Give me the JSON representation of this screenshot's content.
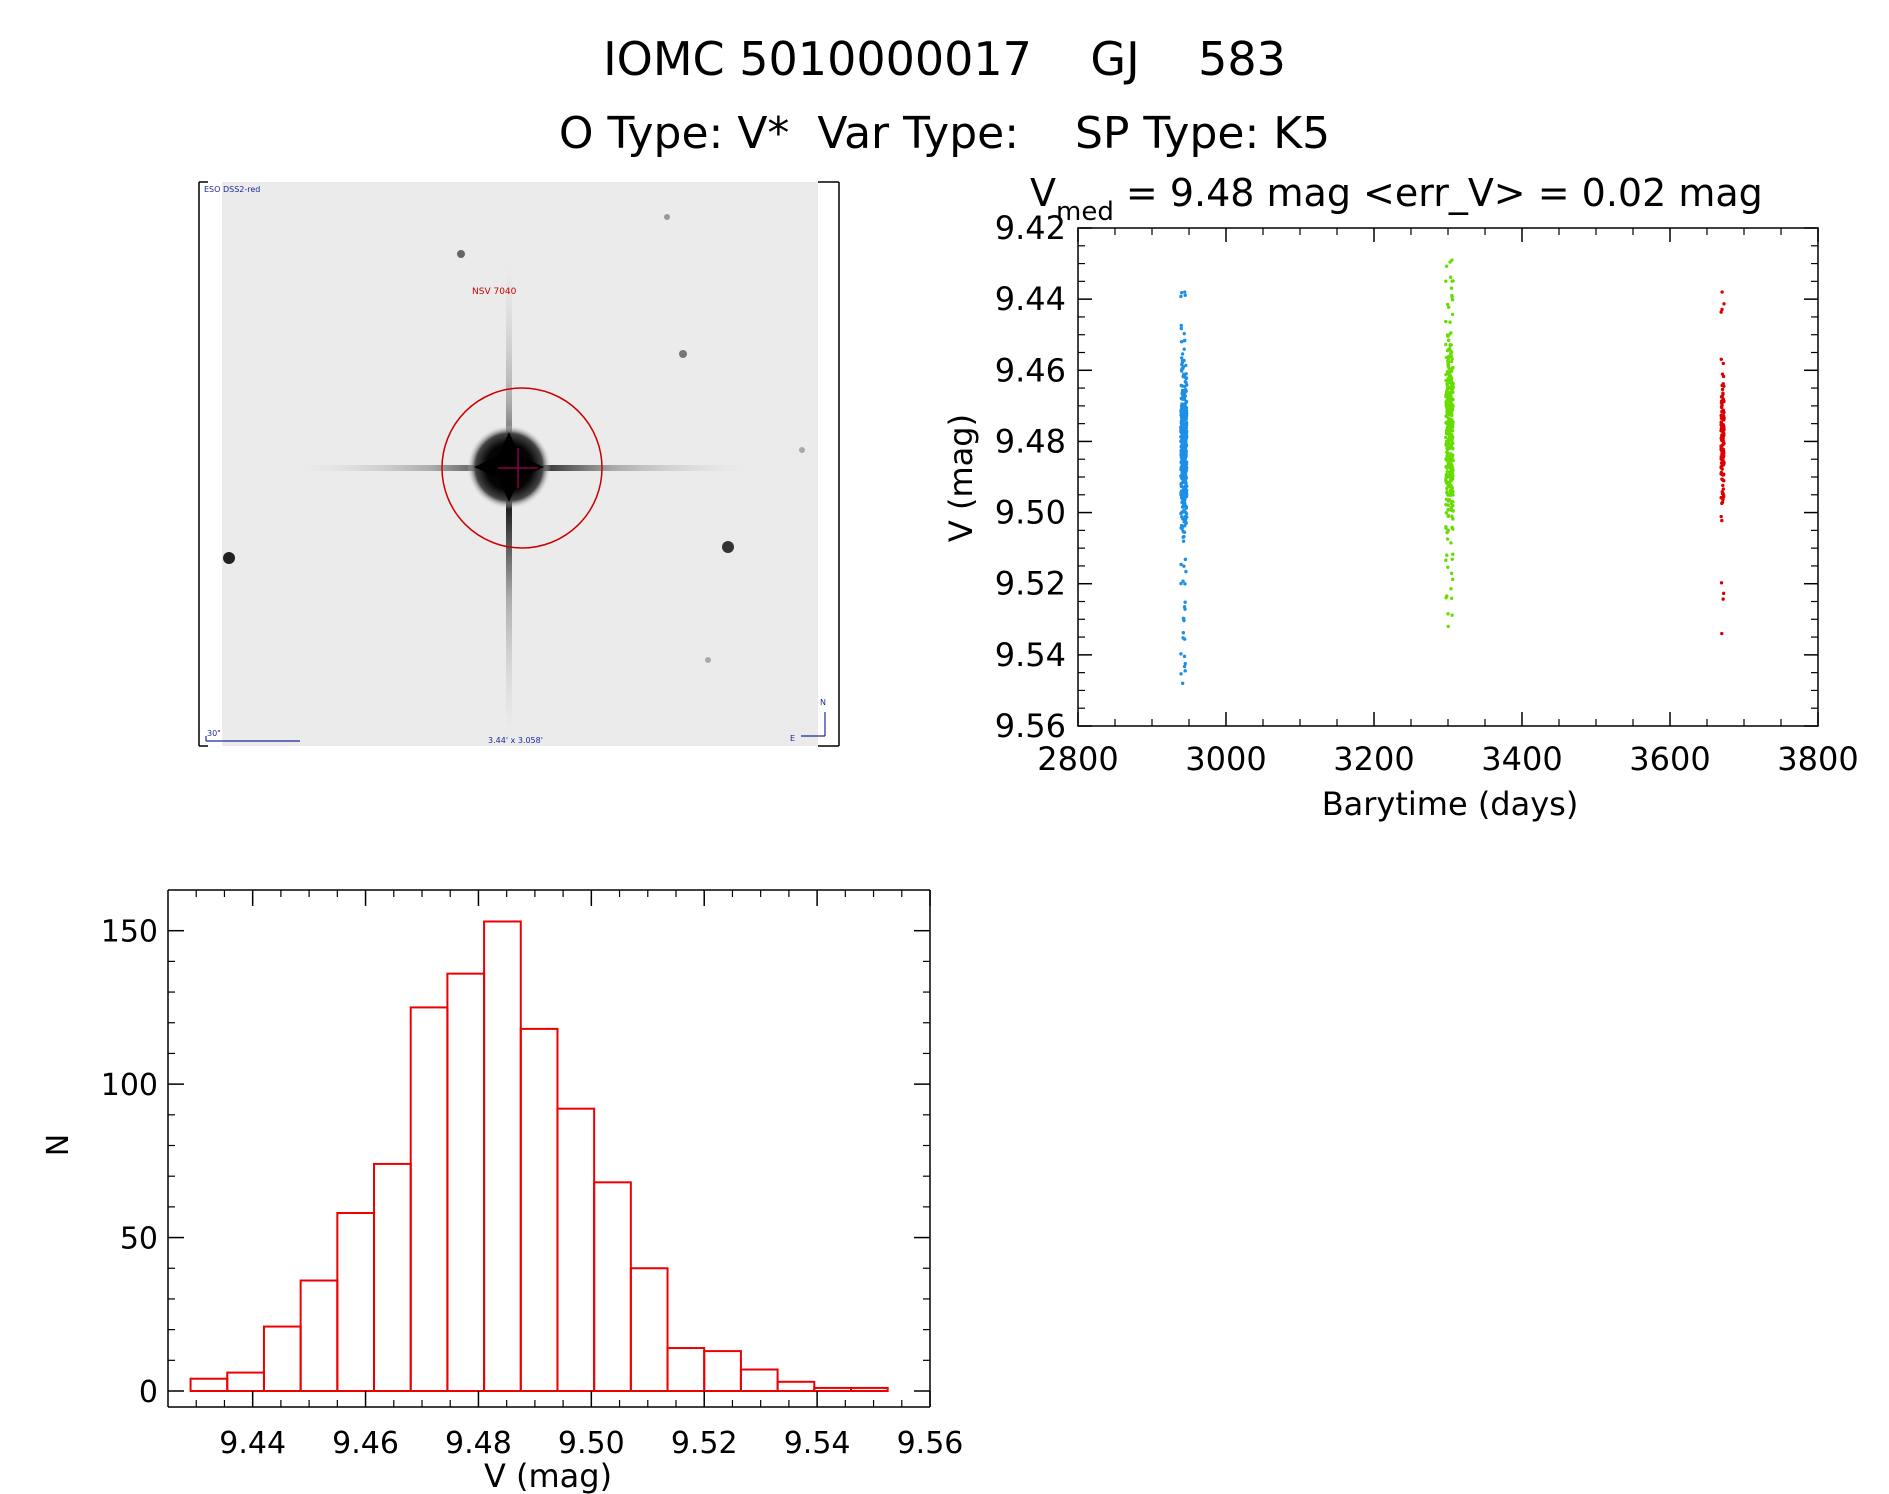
{
  "header": {
    "title_line1": "IOMC 5010000017    GJ    583",
    "title_line2": "O Type: V*  Var Type:    SP Type: K5"
  },
  "finder_chart": {
    "survey_label": "ESO DSS2-red",
    "object_label": "NSV 7040",
    "scale_label": "30\"",
    "fov_label": "3.44' x 3.058'",
    "north_label": "N",
    "east_label": "E",
    "circle_color": "#cc0000"
  },
  "chart_data": [
    {
      "type": "scatter",
      "title_prefix": "V",
      "title_subscript": "med",
      "title_rest": " = 9.48 mag <err_V> = 0.02 mag",
      "xlabel": "Barytime (days)",
      "ylabel": "V (mag)",
      "xlim": [
        2800,
        3800
      ],
      "ylim": [
        9.56,
        9.42
      ],
      "y_inverted": true,
      "xticks": [
        2800,
        3000,
        3200,
        3400,
        3600,
        3800
      ],
      "yticks": [
        "9.42",
        "9.44",
        "9.46",
        "9.48",
        "9.50",
        "9.52",
        "9.54",
        "9.56"
      ],
      "series": [
        {
          "color": "#1e8fe6",
          "x_center": 2943,
          "x_spread": 4,
          "y_dense_range": [
            9.457,
            9.508
          ],
          "y_full_range": [
            9.438,
            9.548
          ],
          "n_points": 420
        },
        {
          "color": "#66dd00",
          "x_center": 3302,
          "x_spread": 5,
          "y_dense_range": [
            9.447,
            9.508
          ],
          "y_full_range": [
            9.429,
            9.532
          ],
          "n_points": 420
        },
        {
          "color": "#dd0000",
          "x_center": 3671,
          "x_spread": 2,
          "y_dense_range": [
            9.458,
            9.5
          ],
          "y_full_range": [
            9.438,
            9.534
          ],
          "n_points": 150
        }
      ]
    },
    {
      "type": "bar",
      "subtype": "histogram",
      "xlabel": "V (mag)",
      "ylabel": "N",
      "xlim": [
        9.425,
        9.56
      ],
      "ylim": [
        0,
        160
      ],
      "xticks": [
        "9.44",
        "9.46",
        "9.48",
        "9.50",
        "9.52",
        "9.54",
        "9.56"
      ],
      "yticks": [
        0,
        50,
        100,
        150
      ],
      "bar_color": "#ee0000",
      "bin_start": 9.429,
      "bin_width": 0.0065,
      "counts": [
        4,
        6,
        21,
        36,
        58,
        74,
        125,
        136,
        153,
        118,
        92,
        68,
        40,
        14,
        13,
        7,
        3,
        1,
        1
      ]
    }
  ]
}
